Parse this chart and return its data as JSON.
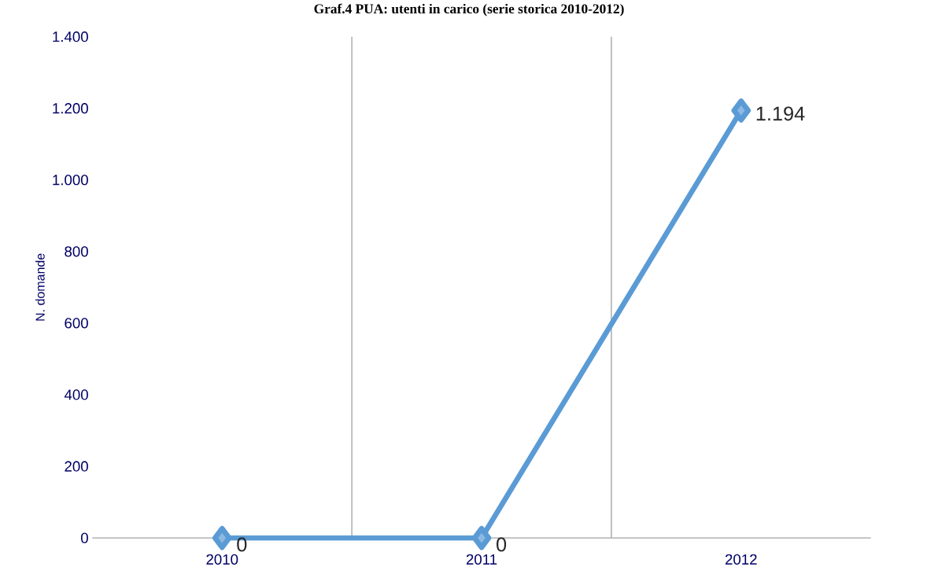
{
  "chart_data": {
    "type": "line",
    "title": "Graf.4 PUA: utenti in carico (serie storica 2010-2012)",
    "ylabel": "N. domande",
    "categories": [
      "2010",
      "2011",
      "2012"
    ],
    "series": [
      {
        "color": "#5b9bd5",
        "values": [
          0,
          0,
          1194
        ],
        "value_labels": [
          "0",
          "0",
          "1.194"
        ]
      }
    ],
    "ylim": [
      0,
      1400
    ],
    "yticks": [
      {
        "value": 0,
        "label": "0"
      },
      {
        "value": 200,
        "label": "200"
      },
      {
        "value": 400,
        "label": "400"
      },
      {
        "value": 600,
        "label": "600"
      },
      {
        "value": 800,
        "label": "800"
      },
      {
        "value": 1000,
        "label": "1.000"
      },
      {
        "value": 1200,
        "label": "1.200"
      },
      {
        "value": 1400,
        "label": "1.400"
      }
    ],
    "grid": "x",
    "marker": "diamond",
    "line_style": "solid"
  }
}
